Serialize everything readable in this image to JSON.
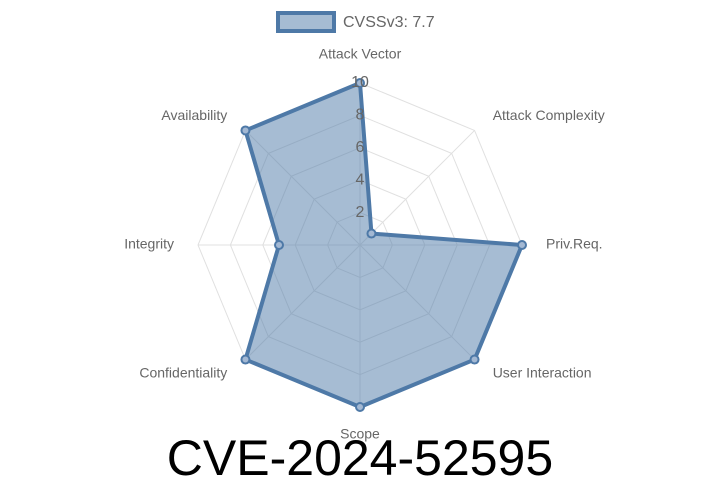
{
  "chart_data": {
    "type": "radar",
    "title": "CVE-2024-52595",
    "categories": [
      "Attack Vector",
      "Attack Complexity",
      "Priv.Req.",
      "User Interaction",
      "Scope",
      "Confidentiality",
      "Integrity",
      "Availability"
    ],
    "series": [
      {
        "name": "CVSSv3: 7.7",
        "color": "#4e79a7",
        "values": [
          10,
          1,
          10,
          10,
          10,
          10,
          5,
          10
        ]
      }
    ],
    "rlim": [
      0,
      10
    ],
    "rticks": [
      2,
      4,
      6,
      8,
      10
    ],
    "grid": true,
    "legend": "top"
  }
}
